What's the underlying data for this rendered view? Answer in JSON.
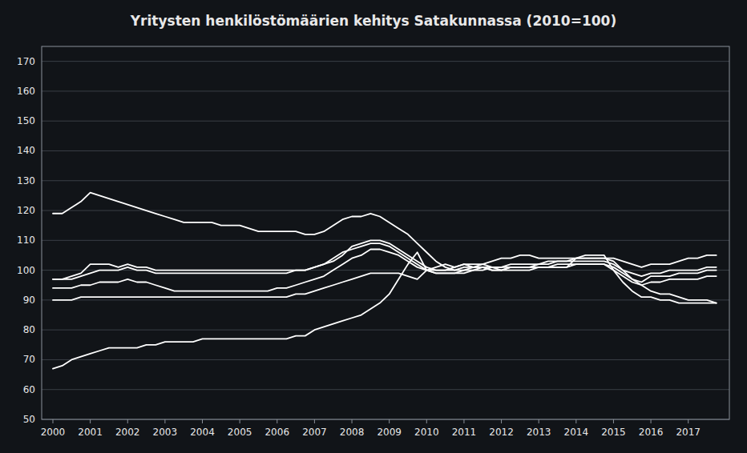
{
  "chart_data": {
    "type": "line",
    "title": "Yritysten henkilöstömäärien kehitys Satakunnassa (2010=100)",
    "x": [
      2000,
      2000.25,
      2000.5,
      2000.75,
      2001,
      2001.25,
      2001.5,
      2001.75,
      2002,
      2002.25,
      2002.5,
      2002.75,
      2003,
      2003.25,
      2003.5,
      2003.75,
      2004,
      2004.25,
      2004.5,
      2004.75,
      2005,
      2005.25,
      2005.5,
      2005.75,
      2006,
      2006.25,
      2006.5,
      2006.75,
      2007,
      2007.25,
      2007.5,
      2007.75,
      2008,
      2008.25,
      2008.5,
      2008.75,
      2009,
      2009.25,
      2009.5,
      2009.75,
      2010,
      2010.25,
      2010.5,
      2010.75,
      2011,
      2011.25,
      2011.5,
      2011.75,
      2012,
      2012.25,
      2012.5,
      2012.75,
      2013,
      2013.25,
      2013.5,
      2013.75,
      2014,
      2014.25,
      2014.5,
      2014.75,
      2015,
      2015.25,
      2015.5,
      2015.75,
      2016,
      2016.25,
      2016.5,
      2016.75,
      2017,
      2017.25,
      2017.5,
      2017.75
    ],
    "series": [
      {
        "color": "#ffffff",
        "values": [
          119,
          119,
          121,
          123,
          126,
          125,
          124,
          123,
          122,
          121,
          120,
          119,
          118,
          117,
          116,
          116,
          116,
          116,
          115,
          115,
          115,
          114,
          113,
          113,
          113,
          113,
          113,
          112,
          112,
          113,
          115,
          117,
          118,
          118,
          119,
          118,
          116,
          114,
          112,
          109,
          106,
          103,
          101,
          100,
          100,
          101,
          102,
          103,
          104,
          104,
          105,
          105,
          104,
          104,
          104,
          104,
          104,
          104,
          104,
          104,
          104,
          103,
          102,
          101,
          102,
          102,
          102,
          103,
          104,
          104,
          105,
          105
        ]
      },
      {
        "color": "#ffffff",
        "values": [
          97,
          97,
          98,
          99,
          102,
          102,
          102,
          101,
          102,
          101,
          101,
          100,
          100,
          100,
          100,
          100,
          100,
          100,
          100,
          100,
          100,
          100,
          100,
          100,
          100,
          100,
          100,
          100,
          101,
          102,
          103,
          105,
          108,
          109,
          110,
          110,
          109,
          107,
          105,
          103,
          101,
          100,
          100,
          101,
          102,
          102,
          102,
          101,
          100,
          101,
          101,
          101,
          102,
          102,
          103,
          103,
          103,
          103,
          103,
          103,
          102,
          100,
          99,
          98,
          99,
          99,
          100,
          100,
          100,
          100,
          101,
          101
        ]
      },
      {
        "color": "#ffffff",
        "values": [
          97,
          97,
          97,
          98,
          99,
          100,
          100,
          100,
          101,
          100,
          100,
          99,
          99,
          99,
          99,
          99,
          99,
          99,
          99,
          99,
          99,
          99,
          99,
          99,
          99,
          99,
          100,
          100,
          101,
          102,
          104,
          106,
          107,
          108,
          109,
          109,
          108,
          106,
          104,
          102,
          100,
          100,
          100,
          100,
          101,
          101,
          101,
          100,
          100,
          101,
          101,
          101,
          101,
          101,
          102,
          102,
          102,
          102,
          102,
          102,
          101,
          99,
          97,
          96,
          98,
          98,
          98,
          99,
          99,
          99,
          100,
          100
        ]
      },
      {
        "color": "#ffffff",
        "values": [
          94,
          94,
          94,
          95,
          95,
          96,
          96,
          96,
          97,
          96,
          96,
          95,
          94,
          93,
          93,
          93,
          93,
          93,
          93,
          93,
          93,
          93,
          93,
          93,
          94,
          94,
          95,
          96,
          97,
          98,
          100,
          102,
          104,
          105,
          107,
          107,
          106,
          105,
          103,
          101,
          100,
          99,
          99,
          99,
          100,
          100,
          101,
          101,
          101,
          101,
          101,
          101,
          101,
          101,
          101,
          101,
          102,
          102,
          102,
          102,
          100,
          98,
          96,
          95,
          96,
          96,
          97,
          97,
          97,
          97,
          98,
          98
        ]
      },
      {
        "color": "#ffffff",
        "values": [
          90,
          90,
          90,
          91,
          91,
          91,
          91,
          91,
          91,
          91,
          91,
          91,
          91,
          91,
          91,
          91,
          91,
          91,
          91,
          91,
          91,
          91,
          91,
          91,
          91,
          91,
          92,
          92,
          93,
          94,
          95,
          96,
          97,
          98,
          99,
          99,
          99,
          99,
          98,
          97,
          100,
          99,
          99,
          99,
          99,
          100,
          100,
          101,
          101,
          102,
          102,
          102,
          102,
          103,
          103,
          103,
          104,
          104,
          104,
          104,
          103,
          100,
          97,
          95,
          93,
          92,
          92,
          91,
          90,
          90,
          90,
          89
        ]
      },
      {
        "color": "#ffffff",
        "values": [
          67,
          68,
          70,
          71,
          72,
          73,
          74,
          74,
          74,
          74,
          75,
          75,
          76,
          76,
          76,
          76,
          77,
          77,
          77,
          77,
          77,
          77,
          77,
          77,
          77,
          77,
          78,
          78,
          80,
          81,
          82,
          83,
          84,
          85,
          87,
          89,
          92,
          97,
          102,
          106,
          100,
          101,
          102,
          101,
          102,
          101,
          101,
          100,
          100,
          100,
          100,
          100,
          101,
          101,
          101,
          101,
          104,
          105,
          105,
          105,
          100,
          96,
          93,
          91,
          91,
          90,
          90,
          89,
          89,
          89,
          89,
          89
        ]
      }
    ],
    "xlim": [
      1999.7,
      2018.1
    ],
    "xticks": [
      2000,
      2001,
      2002,
      2003,
      2004,
      2005,
      2006,
      2007,
      2008,
      2009,
      2010,
      2011,
      2012,
      2013,
      2014,
      2015,
      2016,
      2017
    ],
    "ylim": [
      50,
      175
    ],
    "yticks": [
      50,
      60,
      70,
      80,
      90,
      100,
      110,
      120,
      130,
      140,
      150,
      160,
      170
    ],
    "grid": true
  }
}
